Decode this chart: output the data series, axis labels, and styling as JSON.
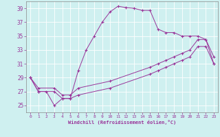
{
  "xlabel": "Windchill (Refroidissement éolien,°C)",
  "bg_color": "#cff0f0",
  "line_color": "#993399",
  "xlim": [
    -0.5,
    23.5
  ],
  "ylim": [
    24.0,
    40.0
  ],
  "xticks": [
    0,
    1,
    2,
    3,
    4,
    5,
    6,
    7,
    8,
    9,
    10,
    11,
    12,
    13,
    14,
    15,
    16,
    17,
    18,
    19,
    20,
    21,
    22,
    23
  ],
  "yticks": [
    25,
    27,
    29,
    31,
    33,
    35,
    37,
    39
  ],
  "series1_x": [
    0,
    1,
    2,
    3,
    4,
    5,
    6,
    7,
    8,
    9,
    10,
    11,
    12,
    13,
    14,
    15,
    16,
    17,
    18,
    19,
    20,
    21,
    22,
    23
  ],
  "series1_y": [
    29,
    27,
    27,
    25,
    26,
    26,
    30,
    33,
    35,
    37,
    38.5,
    39.3,
    39.1,
    39.0,
    38.7,
    38.7,
    36.0,
    35.5,
    35.5,
    35.0,
    35.0,
    35.0,
    34.5,
    31.0
  ],
  "series2_x": [
    0,
    1,
    3,
    4,
    5,
    6,
    10,
    15,
    16,
    17,
    18,
    19,
    20,
    21,
    22,
    23
  ],
  "series2_y": [
    29,
    27.5,
    27.5,
    26.5,
    26.5,
    27.5,
    28.5,
    30.5,
    31.0,
    31.5,
    32.0,
    32.5,
    33.0,
    34.5,
    34.5,
    32.0
  ],
  "series3_x": [
    0,
    1,
    3,
    4,
    5,
    6,
    10,
    15,
    16,
    17,
    18,
    19,
    20,
    21,
    22,
    23
  ],
  "series3_y": [
    29,
    27.0,
    27.0,
    26.0,
    26.0,
    26.5,
    27.5,
    29.5,
    30.0,
    30.5,
    31.0,
    31.5,
    32.0,
    33.5,
    33.5,
    31.0
  ]
}
